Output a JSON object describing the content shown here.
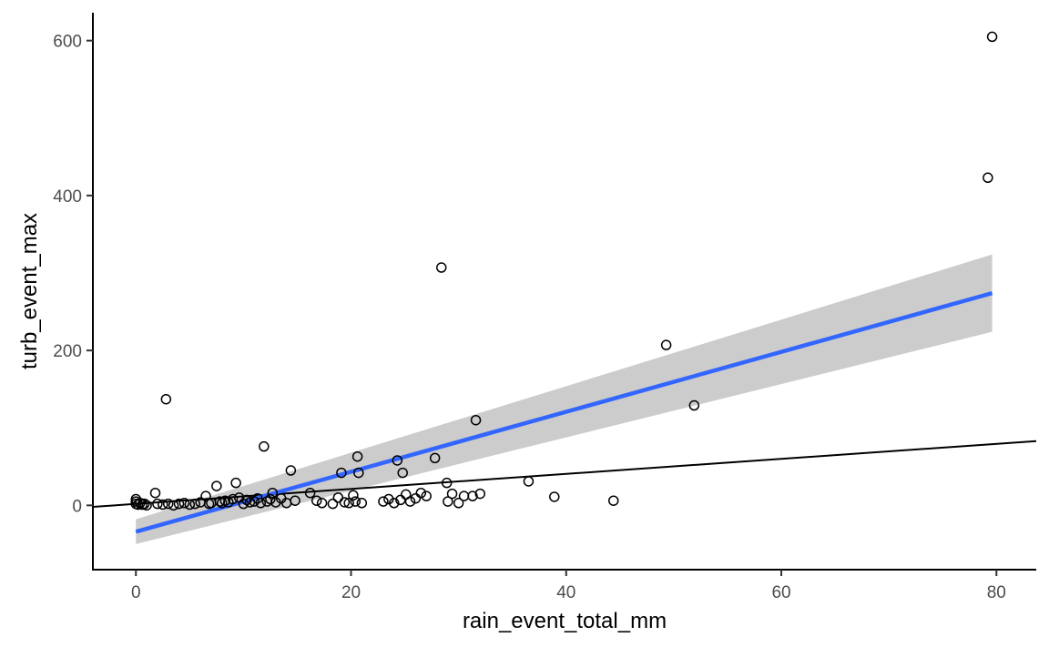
{
  "chart_data": {
    "type": "scatter",
    "title": "",
    "xlabel": "rain_event_total_mm",
    "ylabel": "turb_event_max",
    "xlim": [
      -4,
      83.7
    ],
    "ylim": [
      -83,
      636
    ],
    "x_ticks": [
      0,
      20,
      40,
      60,
      80
    ],
    "y_ticks": [
      0,
      200,
      400,
      600
    ],
    "grid": false,
    "legend": "none",
    "colors": {
      "points_stroke": "#000000",
      "fit_line": "#3366FF",
      "confidence_band": "#CCCCCC",
      "reference_line": "#000000"
    },
    "points": [
      [
        0,
        2
      ],
      [
        0,
        5
      ],
      [
        0,
        8
      ],
      [
        0.2,
        1
      ],
      [
        0.4,
        3
      ],
      [
        0.6,
        1
      ],
      [
        0.8,
        2
      ],
      [
        1,
        0
      ],
      [
        1.8,
        16
      ],
      [
        2,
        2
      ],
      [
        2.5,
        1
      ],
      [
        2.8,
        137
      ],
      [
        3,
        2
      ],
      [
        3.5,
        0
      ],
      [
        4,
        2
      ],
      [
        4.5,
        3
      ],
      [
        5,
        1
      ],
      [
        5.5,
        2
      ],
      [
        6,
        4
      ],
      [
        6.5,
        12
      ],
      [
        6.8,
        2
      ],
      [
        7,
        3
      ],
      [
        7.5,
        25
      ],
      [
        7.8,
        5
      ],
      [
        8,
        3
      ],
      [
        8.3,
        6
      ],
      [
        8.6,
        4
      ],
      [
        9,
        8
      ],
      [
        9.3,
        29
      ],
      [
        9.6,
        10
      ],
      [
        10,
        2
      ],
      [
        10.3,
        7
      ],
      [
        10.6,
        4
      ],
      [
        11,
        5
      ],
      [
        11.3,
        9
      ],
      [
        11.6,
        3
      ],
      [
        11.9,
        76
      ],
      [
        12.2,
        5
      ],
      [
        12.5,
        8
      ],
      [
        12.7,
        16
      ],
      [
        13,
        4
      ],
      [
        13.5,
        9
      ],
      [
        14,
        3
      ],
      [
        14.4,
        45
      ],
      [
        14.8,
        6
      ],
      [
        16.2,
        16
      ],
      [
        16.8,
        6
      ],
      [
        17.3,
        3
      ],
      [
        18.3,
        2
      ],
      [
        18.8,
        10
      ],
      [
        19.1,
        42
      ],
      [
        19.4,
        4
      ],
      [
        19.8,
        3
      ],
      [
        20.2,
        13
      ],
      [
        20.4,
        5
      ],
      [
        20.6,
        63
      ],
      [
        20.7,
        42
      ],
      [
        21,
        3
      ],
      [
        23,
        5
      ],
      [
        23.5,
        8
      ],
      [
        24,
        3
      ],
      [
        24.3,
        58
      ],
      [
        24.6,
        7
      ],
      [
        24.8,
        42
      ],
      [
        25.1,
        14
      ],
      [
        25.5,
        5
      ],
      [
        26,
        9
      ],
      [
        26.5,
        16
      ],
      [
        27,
        12
      ],
      [
        27.8,
        61
      ],
      [
        28.4,
        307
      ],
      [
        28.9,
        29
      ],
      [
        29,
        5
      ],
      [
        29.4,
        15
      ],
      [
        30,
        3
      ],
      [
        30.5,
        12
      ],
      [
        31.3,
        12
      ],
      [
        31.6,
        110
      ],
      [
        32,
        15
      ],
      [
        36.5,
        31
      ],
      [
        38.9,
        11
      ],
      [
        44.4,
        6
      ],
      [
        49.3,
        207
      ],
      [
        51.9,
        129
      ],
      [
        79.2,
        423
      ],
      [
        79.6,
        605
      ]
    ],
    "series": [
      {
        "type": "fit",
        "x": [
          0,
          79.6
        ],
        "y": [
          -34,
          274
        ],
        "ci_lower": [
          -50,
          224
        ],
        "ci_upper": [
          -18,
          324
        ]
      },
      {
        "type": "reference",
        "x": [
          -4,
          83.7
        ],
        "y": [
          -2,
          83
        ]
      }
    ]
  }
}
